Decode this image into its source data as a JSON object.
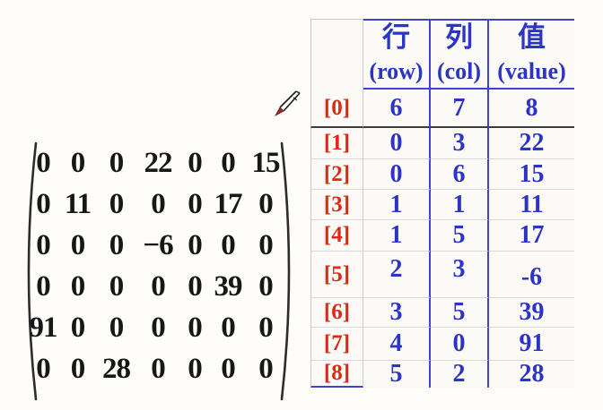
{
  "colors": {
    "text_blue": "#2b34c4",
    "border_blue": "#3e44cf",
    "label_red": "#e02718",
    "matrix_black": "#171717",
    "dark_rule": "#3c3c3c",
    "light_rule": "#d8d8d8",
    "gray_rule": "#c8c8c8",
    "background": "#fefdfa"
  },
  "icons": {
    "pencil": "pencil-cursor-icon"
  },
  "matrix": {
    "rows": [
      [
        "0",
        "0",
        "0",
        "22",
        "0",
        "0",
        "15"
      ],
      [
        "0",
        "11",
        "0",
        "0",
        "0",
        "17",
        "0"
      ],
      [
        "0",
        "0",
        "0",
        "−6",
        "0",
        "0",
        "0"
      ],
      [
        "0",
        "0",
        "0",
        "0",
        "0",
        "39",
        "0"
      ],
      [
        "91",
        "0",
        "0",
        "0",
        "0",
        "0",
        "0"
      ],
      [
        "0",
        "0",
        "28",
        "0",
        "0",
        "0",
        "0"
      ]
    ]
  },
  "table": {
    "headers": [
      {
        "zh": "行",
        "en": "(row)"
      },
      {
        "zh": "列",
        "en": "(col)"
      },
      {
        "zh": "值",
        "en": "(value)"
      }
    ],
    "rows": [
      {
        "label": "[0]",
        "row": "6",
        "col": "7",
        "value": "8"
      },
      {
        "label": "[1]",
        "row": "0",
        "col": "3",
        "value": "22"
      },
      {
        "label": "[2]",
        "row": "0",
        "col": "6",
        "value": "15"
      },
      {
        "label": "[3]",
        "row": "1",
        "col": "1",
        "value": "11"
      },
      {
        "label": "[4]",
        "row": "1",
        "col": "5",
        "value": "17"
      },
      {
        "label": "[5]",
        "row": "2",
        "col": "3",
        "value": "-6"
      },
      {
        "label": "[6]",
        "row": "3",
        "col": "5",
        "value": "39"
      },
      {
        "label": "[7]",
        "row": "4",
        "col": "0",
        "value": "91"
      },
      {
        "label": "[8]",
        "row": "5",
        "col": "2",
        "value": "28"
      }
    ]
  }
}
